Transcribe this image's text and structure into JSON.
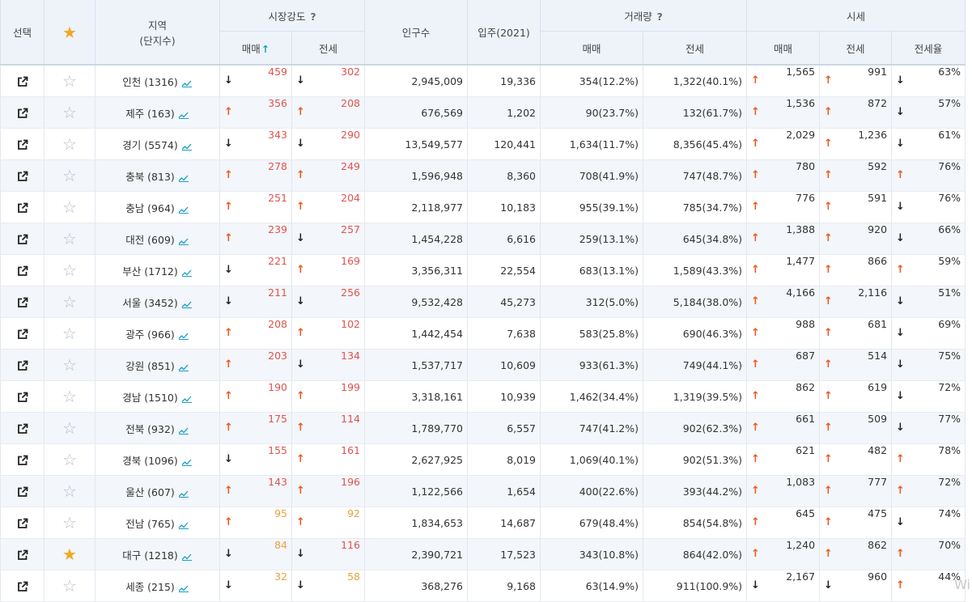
{
  "headers": {
    "select": "선택",
    "region_line1": "지역",
    "region_line2": "(단지수)",
    "market_strength": "시장강도",
    "population": "인구수",
    "move_in": "입주(2021)",
    "volume": "거래량",
    "price": "시세",
    "help": "?",
    "sort_arrow": "↑",
    "sub": {
      "ms_sale": "매매",
      "ms_jeonse": "전세",
      "vol_sale": "매매",
      "vol_jeonse": "전세",
      "pr_sale": "매매",
      "pr_jeonse": "전세",
      "pr_ratio": "전세율"
    }
  },
  "colors": {
    "up_arrow": "#e85a1c",
    "down_arrow": "#222222",
    "strength_high": "#e0534f",
    "strength_low": "#eaa23d",
    "star": "#f4a724",
    "accent": "#1aa0c8"
  },
  "rows": [
    {
      "region": "인천 (1316)",
      "starred": false,
      "ms_sale_dir": "down",
      "ms_sale": "459",
      "ms_jeonse_dir": "down",
      "ms_jeonse": "302",
      "population": "2,945,009",
      "move_in": "19,336",
      "vol_sale": "354(12.2%)",
      "vol_jeonse": "1,322(40.1%)",
      "pr_sale_dir": "up",
      "pr_sale": "1,565",
      "pr_jeonse_dir": "up",
      "pr_jeonse": "991",
      "ratio_dir": "down",
      "ratio": "63%"
    },
    {
      "region": "제주 (163)",
      "starred": false,
      "ms_sale_dir": "up",
      "ms_sale": "356",
      "ms_jeonse_dir": "up",
      "ms_jeonse": "208",
      "population": "676,569",
      "move_in": "1,202",
      "vol_sale": "90(23.7%)",
      "vol_jeonse": "132(61.7%)",
      "pr_sale_dir": "up",
      "pr_sale": "1,536",
      "pr_jeonse_dir": "up",
      "pr_jeonse": "872",
      "ratio_dir": "down",
      "ratio": "57%"
    },
    {
      "region": "경기 (5574)",
      "starred": false,
      "ms_sale_dir": "down",
      "ms_sale": "343",
      "ms_jeonse_dir": "down",
      "ms_jeonse": "290",
      "population": "13,549,577",
      "move_in": "120,441",
      "vol_sale": "1,634(11.7%)",
      "vol_jeonse": "8,356(45.4%)",
      "pr_sale_dir": "up",
      "pr_sale": "2,029",
      "pr_jeonse_dir": "up",
      "pr_jeonse": "1,236",
      "ratio_dir": "down",
      "ratio": "61%"
    },
    {
      "region": "충북 (813)",
      "starred": false,
      "ms_sale_dir": "up",
      "ms_sale": "278",
      "ms_jeonse_dir": "up",
      "ms_jeonse": "249",
      "population": "1,596,948",
      "move_in": "8,360",
      "vol_sale": "708(41.9%)",
      "vol_jeonse": "747(48.7%)",
      "pr_sale_dir": "up",
      "pr_sale": "780",
      "pr_jeonse_dir": "up",
      "pr_jeonse": "592",
      "ratio_dir": "up",
      "ratio": "76%"
    },
    {
      "region": "충남 (964)",
      "starred": false,
      "ms_sale_dir": "up",
      "ms_sale": "251",
      "ms_jeonse_dir": "up",
      "ms_jeonse": "204",
      "population": "2,118,977",
      "move_in": "10,183",
      "vol_sale": "955(39.1%)",
      "vol_jeonse": "785(34.7%)",
      "pr_sale_dir": "up",
      "pr_sale": "776",
      "pr_jeonse_dir": "up",
      "pr_jeonse": "591",
      "ratio_dir": "down",
      "ratio": "76%"
    },
    {
      "region": "대전 (609)",
      "starred": false,
      "ms_sale_dir": "up",
      "ms_sale": "239",
      "ms_jeonse_dir": "down",
      "ms_jeonse": "257",
      "population": "1,454,228",
      "move_in": "6,616",
      "vol_sale": "259(13.1%)",
      "vol_jeonse": "645(34.8%)",
      "pr_sale_dir": "up",
      "pr_sale": "1,388",
      "pr_jeonse_dir": "up",
      "pr_jeonse": "920",
      "ratio_dir": "down",
      "ratio": "66%"
    },
    {
      "region": "부산 (1712)",
      "starred": false,
      "ms_sale_dir": "down",
      "ms_sale": "221",
      "ms_jeonse_dir": "up",
      "ms_jeonse": "169",
      "population": "3,356,311",
      "move_in": "22,554",
      "vol_sale": "683(13.1%)",
      "vol_jeonse": "1,589(43.3%)",
      "pr_sale_dir": "up",
      "pr_sale": "1,477",
      "pr_jeonse_dir": "up",
      "pr_jeonse": "866",
      "ratio_dir": "up",
      "ratio": "59%"
    },
    {
      "region": "서울 (3452)",
      "starred": false,
      "ms_sale_dir": "down",
      "ms_sale": "211",
      "ms_jeonse_dir": "down",
      "ms_jeonse": "256",
      "population": "9,532,428",
      "move_in": "45,273",
      "vol_sale": "312(5.0%)",
      "vol_jeonse": "5,184(38.0%)",
      "pr_sale_dir": "up",
      "pr_sale": "4,166",
      "pr_jeonse_dir": "up",
      "pr_jeonse": "2,116",
      "ratio_dir": "down",
      "ratio": "51%"
    },
    {
      "region": "광주 (966)",
      "starred": false,
      "ms_sale_dir": "up",
      "ms_sale": "208",
      "ms_jeonse_dir": "up",
      "ms_jeonse": "102",
      "population": "1,442,454",
      "move_in": "7,638",
      "vol_sale": "583(25.8%)",
      "vol_jeonse": "690(46.3%)",
      "pr_sale_dir": "up",
      "pr_sale": "988",
      "pr_jeonse_dir": "up",
      "pr_jeonse": "681",
      "ratio_dir": "down",
      "ratio": "69%"
    },
    {
      "region": "강원 (851)",
      "starred": false,
      "ms_sale_dir": "up",
      "ms_sale": "203",
      "ms_jeonse_dir": "down",
      "ms_jeonse": "134",
      "population": "1,537,717",
      "move_in": "10,609",
      "vol_sale": "933(61.3%)",
      "vol_jeonse": "749(44.1%)",
      "pr_sale_dir": "up",
      "pr_sale": "687",
      "pr_jeonse_dir": "up",
      "pr_jeonse": "514",
      "ratio_dir": "down",
      "ratio": "75%"
    },
    {
      "region": "경남 (1510)",
      "starred": false,
      "ms_sale_dir": "up",
      "ms_sale": "190",
      "ms_jeonse_dir": "up",
      "ms_jeonse": "199",
      "population": "3,318,161",
      "move_in": "10,939",
      "vol_sale": "1,462(34.4%)",
      "vol_jeonse": "1,319(39.5%)",
      "pr_sale_dir": "up",
      "pr_sale": "862",
      "pr_jeonse_dir": "up",
      "pr_jeonse": "619",
      "ratio_dir": "down",
      "ratio": "72%"
    },
    {
      "region": "전북 (932)",
      "starred": false,
      "ms_sale_dir": "up",
      "ms_sale": "175",
      "ms_jeonse_dir": "up",
      "ms_jeonse": "114",
      "population": "1,789,770",
      "move_in": "6,557",
      "vol_sale": "747(41.2%)",
      "vol_jeonse": "902(62.3%)",
      "pr_sale_dir": "up",
      "pr_sale": "661",
      "pr_jeonse_dir": "up",
      "pr_jeonse": "509",
      "ratio_dir": "down",
      "ratio": "77%"
    },
    {
      "region": "경북 (1096)",
      "starred": false,
      "ms_sale_dir": "down",
      "ms_sale": "155",
      "ms_jeonse_dir": "up",
      "ms_jeonse": "161",
      "population": "2,627,925",
      "move_in": "8,019",
      "vol_sale": "1,069(40.1%)",
      "vol_jeonse": "902(51.3%)",
      "pr_sale_dir": "up",
      "pr_sale": "621",
      "pr_jeonse_dir": "up",
      "pr_jeonse": "482",
      "ratio_dir": "up",
      "ratio": "78%"
    },
    {
      "region": "울산 (607)",
      "starred": false,
      "ms_sale_dir": "up",
      "ms_sale": "143",
      "ms_jeonse_dir": "up",
      "ms_jeonse": "196",
      "population": "1,122,566",
      "move_in": "1,654",
      "vol_sale": "400(22.6%)",
      "vol_jeonse": "393(44.2%)",
      "pr_sale_dir": "up",
      "pr_sale": "1,083",
      "pr_jeonse_dir": "up",
      "pr_jeonse": "777",
      "ratio_dir": "up",
      "ratio": "72%"
    },
    {
      "region": "전남 (765)",
      "starred": false,
      "ms_sale_dir": "up",
      "ms_sale": "95",
      "ms_jeonse_dir": "up",
      "ms_jeonse": "92",
      "population": "1,834,653",
      "move_in": "14,687",
      "vol_sale": "679(48.4%)",
      "vol_jeonse": "854(54.8%)",
      "pr_sale_dir": "up",
      "pr_sale": "645",
      "pr_jeonse_dir": "up",
      "pr_jeonse": "475",
      "ratio_dir": "down",
      "ratio": "74%"
    },
    {
      "region": "대구 (1218)",
      "starred": true,
      "ms_sale_dir": "down",
      "ms_sale": "84",
      "ms_jeonse_dir": "down",
      "ms_jeonse": "116",
      "population": "2,390,721",
      "move_in": "17,523",
      "vol_sale": "343(10.8%)",
      "vol_jeonse": "864(42.0%)",
      "pr_sale_dir": "up",
      "pr_sale": "1,240",
      "pr_jeonse_dir": "up",
      "pr_jeonse": "862",
      "ratio_dir": "up",
      "ratio": "70%"
    },
    {
      "region": "세종 (215)",
      "starred": false,
      "ms_sale_dir": "down",
      "ms_sale": "32",
      "ms_jeonse_dir": "down",
      "ms_jeonse": "58",
      "population": "368,276",
      "move_in": "9,168",
      "vol_sale": "63(14.9%)",
      "vol_jeonse": "911(100.9%)",
      "pr_sale_dir": "down",
      "pr_sale": "2,167",
      "pr_jeonse_dir": "down",
      "pr_jeonse": "960",
      "ratio_dir": "up",
      "ratio": "44%"
    }
  ],
  "watermark": "Wi"
}
